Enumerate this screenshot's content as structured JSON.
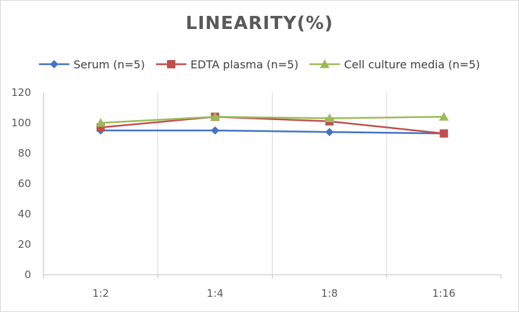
{
  "chart_data": {
    "type": "line",
    "title": "LINEARITY(%)",
    "xlabel": "",
    "ylabel": "",
    "categories": [
      "1:2",
      "1:4",
      "1:8",
      "1:16"
    ],
    "ylim": [
      0,
      120
    ],
    "yticks": [
      0,
      20,
      40,
      60,
      80,
      100,
      120
    ],
    "grid": "vertical",
    "legend": "top",
    "series": [
      {
        "name": "Serum (n=5)",
        "values": [
          95,
          95,
          94,
          93
        ],
        "color": "#4472c4",
        "marker": "diamond"
      },
      {
        "name": "EDTA plasma (n=5)",
        "values": [
          97,
          104,
          101,
          93
        ],
        "color": "#c0504d",
        "marker": "square"
      },
      {
        "name": "Cell culture media (n=5)",
        "values": [
          100,
          104,
          103,
          104
        ],
        "color": "#9bbb59",
        "marker": "triangle"
      }
    ]
  }
}
